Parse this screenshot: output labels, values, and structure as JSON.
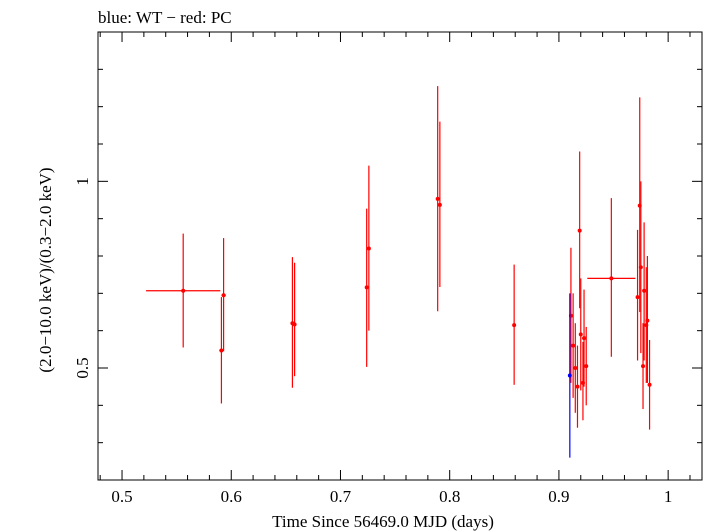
{
  "chart_data": {
    "type": "scatter",
    "title": "blue: WT − red: PC",
    "xlabel": "Time Since 56469.0 MJD (days)",
    "ylabel": "(2.0−10.0 keV)/(0.3−2.0 keV)",
    "xlim": [
      0.478,
      1.031
    ],
    "ylim": [
      0.2,
      1.4
    ],
    "x_ticks": [
      0.5,
      0.6,
      0.7,
      0.8,
      0.9,
      1.0
    ],
    "x_tick_labels": [
      "0.5",
      "0.6",
      "0.7",
      "0.8",
      "0.9",
      "1"
    ],
    "y_ticks": [
      0.5,
      1.0
    ],
    "y_tick_labels": [
      "0.5",
      "1"
    ],
    "grid": false,
    "series": [
      {
        "color": "#0000ff",
        "points": [
          {
            "x": 0.91,
            "y": 0.48,
            "ylo": 0.26,
            "yhi": 0.7,
            "xerr": 0.001
          }
        ]
      },
      {
        "color": "#ff0000",
        "points": [
          {
            "x": 0.556,
            "y": 0.707,
            "ylo": 0.555,
            "yhi": 0.86,
            "xerr": 0.034
          },
          {
            "x": 0.591,
            "y": 0.547,
            "ylo": 0.405,
            "yhi": 0.69,
            "xerr": 0.002
          },
          {
            "x": 0.593,
            "y": 0.695,
            "ylo": 0.545,
            "yhi": 0.848,
            "xerr": 0.002
          },
          {
            "x": 0.656,
            "y": 0.62,
            "ylo": 0.447,
            "yhi": 0.797,
            "xerr": 0.001
          },
          {
            "x": 0.658,
            "y": 0.617,
            "ylo": 0.478,
            "yhi": 0.782,
            "xerr": 0.001
          },
          {
            "x": 0.724,
            "y": 0.716,
            "ylo": 0.503,
            "yhi": 0.927,
            "xerr": 0.001
          },
          {
            "x": 0.726,
            "y": 0.82,
            "ylo": 0.6,
            "yhi": 1.042,
            "xerr": 0.001
          },
          {
            "x": 0.789,
            "y": 0.953,
            "ylo": 0.652,
            "yhi": 1.255,
            "xerr": 0.001
          },
          {
            "x": 0.791,
            "y": 0.937,
            "ylo": 0.717,
            "yhi": 1.16,
            "xerr": 0.001
          },
          {
            "x": 0.859,
            "y": 0.615,
            "ylo": 0.455,
            "yhi": 0.777,
            "xerr": 0.001
          },
          {
            "x": 0.911,
            "y": 0.64,
            "ylo": 0.46,
            "yhi": 0.822,
            "xerr": 0.001
          },
          {
            "x": 0.913,
            "y": 0.56,
            "ylo": 0.42,
            "yhi": 0.7,
            "xerr": 0.001
          },
          {
            "x": 0.915,
            "y": 0.5,
            "ylo": 0.38,
            "yhi": 0.62,
            "xerr": 0.001
          },
          {
            "x": 0.917,
            "y": 0.45,
            "ylo": 0.34,
            "yhi": 0.56,
            "xerr": 0.001
          },
          {
            "x": 0.919,
            "y": 0.868,
            "ylo": 0.66,
            "yhi": 1.08,
            "xerr": 0.001
          },
          {
            "x": 0.92,
            "y": 0.59,
            "ylo": 0.44,
            "yhi": 0.74,
            "xerr": 0.001
          },
          {
            "x": 0.922,
            "y": 0.46,
            "ylo": 0.36,
            "yhi": 0.57,
            "xerr": 0.001
          },
          {
            "x": 0.923,
            "y": 0.58,
            "ylo": 0.45,
            "yhi": 0.71,
            "xerr": 0.001
          },
          {
            "x": 0.925,
            "y": 0.505,
            "ylo": 0.4,
            "yhi": 0.61,
            "xerr": 0.001
          },
          {
            "x": 0.948,
            "y": 0.74,
            "ylo": 0.53,
            "yhi": 0.955,
            "xerr": 0.022
          },
          {
            "x": 0.972,
            "y": 0.69,
            "ylo": 0.52,
            "yhi": 0.87,
            "xerr": 0.001
          },
          {
            "x": 0.974,
            "y": 0.935,
            "ylo": 0.65,
            "yhi": 1.225,
            "xerr": 0.001
          },
          {
            "x": 0.975,
            "y": 0.77,
            "ylo": 0.54,
            "yhi": 1.0,
            "xerr": 0.001
          },
          {
            "x": 0.977,
            "y": 0.505,
            "ylo": 0.39,
            "yhi": 0.62,
            "xerr": 0.001
          },
          {
            "x": 0.978,
            "y": 0.707,
            "ylo": 0.52,
            "yhi": 0.89,
            "xerr": 0.001
          },
          {
            "x": 0.98,
            "y": 0.615,
            "ylo": 0.46,
            "yhi": 0.77,
            "xerr": 0.001
          },
          {
            "x": 0.981,
            "y": 0.627,
            "ylo": 0.46,
            "yhi": 0.8,
            "xerr": 0.001
          },
          {
            "x": 0.983,
            "y": 0.455,
            "ylo": 0.335,
            "yhi": 0.575,
            "xerr": 0.001
          }
        ]
      }
    ]
  }
}
